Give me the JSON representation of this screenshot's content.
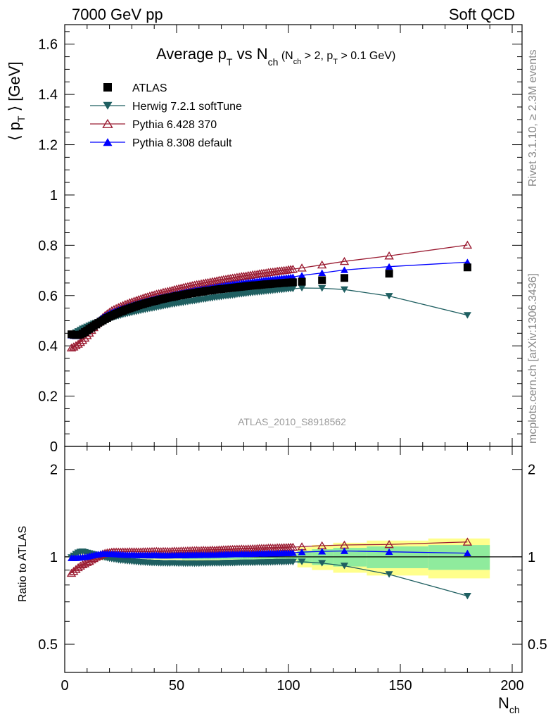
{
  "header": {
    "left": "7000 GeV pp",
    "right": "Soft QCD"
  },
  "side_labels": {
    "rivet": "Rivet 3.1.10, ≥ 2.3M events",
    "mcplots": "mcplots.cern.ch [arXiv:1306.3436]"
  },
  "chart_data": {
    "type": "scatter",
    "title": {
      "main": "Average p",
      "main_sub": "T",
      "mid": " vs N",
      "mid_sub": "ch",
      "cut_open": " (N",
      "cut_sub1": "ch",
      "cut_mid": " > 2, p",
      "cut_sub2": "T",
      "cut_close": " > 0.1 GeV)"
    },
    "ylabel": {
      "left": "⟨ p",
      "sub": "T",
      "right": " ⟩ [GeV]"
    },
    "xlabel": {
      "main": "N",
      "sub": "ch"
    },
    "ratio_ylabel": "Ratio to ATLAS",
    "watermark": "ATLAS_2010_S8918562",
    "xlim": [
      0,
      200
    ],
    "ylim": [
      0,
      1.7
    ],
    "ratio_ylim": [
      0.4,
      2.4
    ],
    "ratio_log_scale": true,
    "x_ticks": [
      "0",
      "50",
      "100",
      "150",
      "200"
    ],
    "y_ticks": [
      "0",
      "0.2",
      "0.4",
      "0.6",
      "0.8",
      "1",
      "1.2",
      "1.4",
      "1.6"
    ],
    "ratio_ticks": [
      "0.5",
      "1",
      "2"
    ],
    "legend_position": "top-left",
    "x": [
      3,
      4,
      5,
      6,
      7,
      8,
      9,
      10,
      11,
      12,
      13,
      14,
      15,
      16,
      17,
      18,
      19,
      20,
      21,
      22,
      23,
      24,
      25,
      26,
      27,
      28,
      29,
      30,
      31,
      32,
      33,
      34,
      35,
      36,
      37,
      38,
      39,
      40,
      41,
      42,
      43,
      44,
      45,
      46,
      47,
      48,
      49,
      50,
      51,
      52,
      53,
      54,
      55,
      56,
      57,
      58,
      59,
      60,
      61,
      62,
      63,
      64,
      65,
      66,
      67,
      68,
      69,
      70,
      71,
      72,
      73,
      74,
      75,
      76,
      77,
      78,
      79,
      80,
      81,
      82,
      83,
      84,
      85,
      86,
      87,
      88,
      89,
      90,
      91,
      92,
      93,
      94,
      95,
      96,
      97,
      98,
      99,
      100,
      101,
      102,
      106,
      115,
      125,
      145,
      180
    ],
    "series": [
      {
        "name": "ATLAS",
        "key": "atlas",
        "color": "#000000",
        "marker": "square",
        "line": false,
        "values": [
          0.446,
          0.444,
          0.443,
          0.443,
          0.445,
          0.449,
          0.455,
          0.461,
          0.467,
          0.473,
          0.479,
          0.485,
          0.491,
          0.496,
          0.501,
          0.506,
          0.511,
          0.516,
          0.52,
          0.524,
          0.528,
          0.532,
          0.536,
          0.539,
          0.543,
          0.546,
          0.549,
          0.552,
          0.555,
          0.558,
          0.561,
          0.564,
          0.566,
          0.569,
          0.571,
          0.574,
          0.576,
          0.578,
          0.58,
          0.583,
          0.585,
          0.587,
          0.589,
          0.591,
          0.593,
          0.594,
          0.596,
          0.598,
          0.6,
          0.601,
          0.603,
          0.605,
          0.606,
          0.608,
          0.609,
          0.611,
          0.612,
          0.614,
          0.615,
          0.616,
          0.618,
          0.619,
          0.62,
          0.621,
          0.623,
          0.624,
          0.625,
          0.626,
          0.627,
          0.628,
          0.629,
          0.63,
          0.631,
          0.632,
          0.633,
          0.634,
          0.635,
          0.636,
          0.637,
          0.638,
          0.639,
          0.64,
          0.641,
          0.641,
          0.642,
          0.643,
          0.644,
          0.645,
          0.645,
          0.646,
          0.647,
          0.648,
          0.648,
          0.649,
          0.65,
          0.65,
          0.651,
          0.652,
          0.652,
          0.653,
          0.655,
          0.661,
          0.67,
          0.687,
          0.712
        ]
      },
      {
        "name": "Herwig 7.2.1 softTune",
        "key": "herwig",
        "color": "#1f5f61",
        "marker": "triangle-down",
        "line": true,
        "values": [
          0.444,
          0.448,
          0.453,
          0.458,
          0.463,
          0.468,
          0.472,
          0.476,
          0.48,
          0.484,
          0.488,
          0.491,
          0.494,
          0.497,
          0.5,
          0.503,
          0.506,
          0.509,
          0.512,
          0.514,
          0.517,
          0.519,
          0.521,
          0.524,
          0.526,
          0.528,
          0.53,
          0.532,
          0.534,
          0.536,
          0.538,
          0.54,
          0.542,
          0.544,
          0.546,
          0.548,
          0.549,
          0.551,
          0.553,
          0.555,
          0.556,
          0.558,
          0.56,
          0.561,
          0.563,
          0.565,
          0.566,
          0.568,
          0.569,
          0.571,
          0.572,
          0.574,
          0.575,
          0.577,
          0.578,
          0.579,
          0.581,
          0.582,
          0.584,
          0.585,
          0.586,
          0.588,
          0.589,
          0.59,
          0.592,
          0.593,
          0.594,
          0.595,
          0.597,
          0.598,
          0.599,
          0.6,
          0.601,
          0.602,
          0.604,
          0.605,
          0.606,
          0.607,
          0.608,
          0.609,
          0.61,
          0.611,
          0.612,
          0.613,
          0.614,
          0.615,
          0.616,
          0.617,
          0.618,
          0.619,
          0.62,
          0.621,
          0.622,
          0.623,
          0.623,
          0.624,
          0.625,
          0.626,
          0.627,
          0.627,
          0.63,
          0.629,
          0.624,
          0.598,
          0.522
        ]
      },
      {
        "name": "Pythia 6.428 370",
        "key": "pythia6",
        "color": "#9b1d33",
        "marker": "triangle-up-open",
        "line": true,
        "values": [
          0.392,
          0.396,
          0.401,
          0.407,
          0.414,
          0.422,
          0.431,
          0.441,
          0.451,
          0.462,
          0.473,
          0.484,
          0.494,
          0.504,
          0.513,
          0.521,
          0.528,
          0.534,
          0.54,
          0.545,
          0.549,
          0.553,
          0.557,
          0.561,
          0.565,
          0.568,
          0.572,
          0.575,
          0.578,
          0.581,
          0.584,
          0.587,
          0.59,
          0.593,
          0.595,
          0.598,
          0.601,
          0.603,
          0.606,
          0.608,
          0.61,
          0.613,
          0.615,
          0.617,
          0.619,
          0.621,
          0.624,
          0.626,
          0.628,
          0.63,
          0.632,
          0.634,
          0.636,
          0.638,
          0.64,
          0.642,
          0.644,
          0.645,
          0.647,
          0.649,
          0.651,
          0.652,
          0.654,
          0.656,
          0.657,
          0.659,
          0.661,
          0.662,
          0.664,
          0.665,
          0.667,
          0.668,
          0.67,
          0.671,
          0.673,
          0.674,
          0.676,
          0.677,
          0.678,
          0.68,
          0.681,
          0.683,
          0.684,
          0.685,
          0.687,
          0.688,
          0.689,
          0.69,
          0.692,
          0.693,
          0.694,
          0.695,
          0.697,
          0.698,
          0.699,
          0.7,
          0.701,
          0.703,
          0.704,
          0.705,
          0.71,
          0.722,
          0.736,
          0.758,
          0.801
        ]
      },
      {
        "name": "Pythia 8.308 default",
        "key": "pythia8",
        "color": "#0000ff",
        "marker": "triangle-up",
        "line": true,
        "values": [
          0.442,
          0.44,
          0.439,
          0.44,
          0.443,
          0.448,
          0.455,
          0.462,
          0.47,
          0.478,
          0.486,
          0.494,
          0.501,
          0.508,
          0.514,
          0.519,
          0.524,
          0.528,
          0.532,
          0.536,
          0.539,
          0.543,
          0.546,
          0.549,
          0.552,
          0.555,
          0.558,
          0.561,
          0.564,
          0.566,
          0.569,
          0.572,
          0.574,
          0.577,
          0.579,
          0.581,
          0.584,
          0.586,
          0.588,
          0.59,
          0.592,
          0.594,
          0.596,
          0.598,
          0.6,
          0.602,
          0.604,
          0.606,
          0.608,
          0.61,
          0.611,
          0.613,
          0.615,
          0.617,
          0.618,
          0.62,
          0.622,
          0.623,
          0.625,
          0.626,
          0.628,
          0.629,
          0.631,
          0.632,
          0.634,
          0.635,
          0.637,
          0.638,
          0.639,
          0.641,
          0.642,
          0.643,
          0.645,
          0.646,
          0.647,
          0.648,
          0.65,
          0.651,
          0.652,
          0.653,
          0.654,
          0.656,
          0.657,
          0.658,
          0.659,
          0.66,
          0.661,
          0.662,
          0.663,
          0.664,
          0.665,
          0.666,
          0.667,
          0.668,
          0.669,
          0.67,
          0.671,
          0.672,
          0.673,
          0.674,
          0.68,
          0.69,
          0.702,
          0.715,
          0.733
        ]
      }
    ]
  }
}
